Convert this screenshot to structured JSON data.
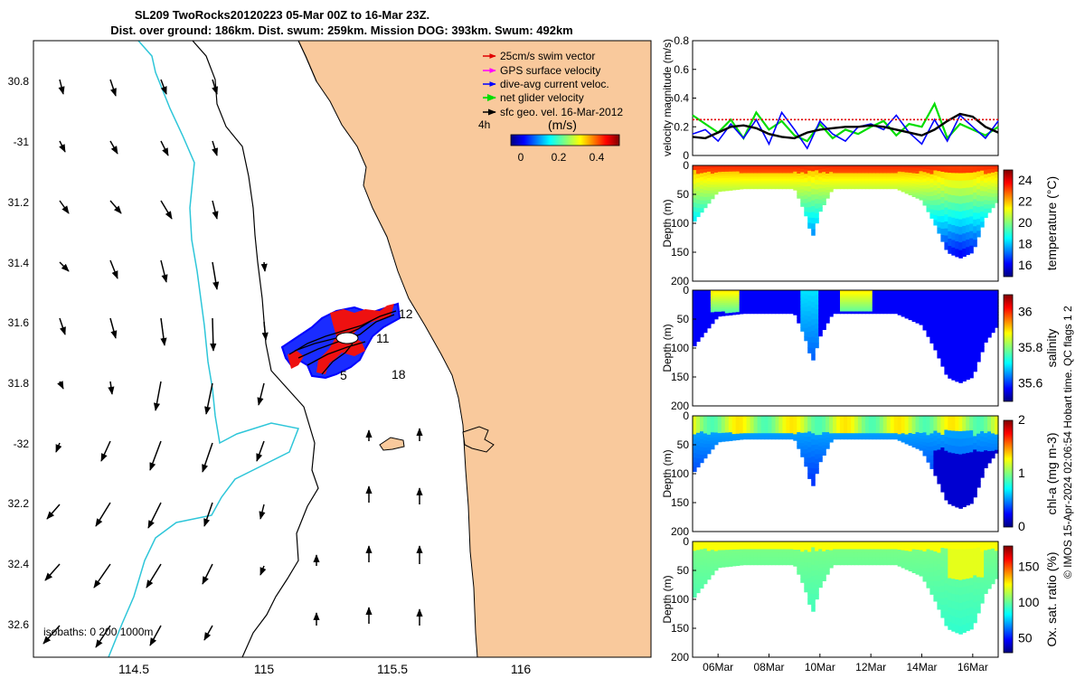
{
  "colors": {
    "land": "#f9c99c",
    "isobath200": "#2ec6d9",
    "swim": "#e00000",
    "gps": "#ff00ff",
    "diveavg": "#0000ff",
    "net": "#00dd00",
    "geo": "#000000"
  },
  "map": {
    "title_line1": "SL209 TwoRocks20120223 05-Mar 00Z to 16-Mar 23Z.",
    "title_line2": "Dist. over ground: 186km. Dist. swum: 259km. Mission DOG: 393km. Swum: 492km",
    "lat_ticks": [
      "30.8",
      "-31",
      "31.2",
      "31.4",
      "31.6",
      "31.8",
      "-32",
      "32.2",
      "32.4",
      "32.6"
    ],
    "lon_ticks": [
      "114.5",
      "115",
      "115.5",
      "116"
    ],
    "legend": [
      {
        "label": "25cm/s swim vector",
        "color_key": "swim"
      },
      {
        "label": "GPS surface velocity",
        "color_key": "gps"
      },
      {
        "label": "dive-avg current veloc.",
        "color_key": "diveavg"
      },
      {
        "label": "net glider velocity",
        "color_key": "net"
      },
      {
        "label": "sfc geo. vel. 16-Mar-2012",
        "color_key": "geo"
      }
    ],
    "timestep_label": "4h",
    "colorbar_label": "(m/s)",
    "colorbar_ticks": [
      "0",
      "0.2",
      "0.4"
    ],
    "day_labels": [
      "12",
      "11",
      "5",
      "18"
    ],
    "isobaths_label": "isobaths: 0   200  1000m"
  },
  "chart_data": [
    {
      "type": "line",
      "title": "",
      "ylabel": "velocity magnitude (m/s)",
      "ylim": [
        0,
        0.8
      ],
      "y_ticks": [
        "0",
        "0.2",
        "0.4",
        "0.6",
        "0.8"
      ],
      "x_days": [
        5,
        17
      ],
      "series": [
        {
          "name": "net glider velocity",
          "color_key": "net",
          "x": [
            5.0,
            5.5,
            6.0,
            6.5,
            7.0,
            7.5,
            8.0,
            8.5,
            9.0,
            9.5,
            10.0,
            10.5,
            11.0,
            11.5,
            12.0,
            12.5,
            13.0,
            13.5,
            14.0,
            14.5,
            15.0,
            15.5,
            16.0,
            16.5,
            17.0
          ],
          "y": [
            0.28,
            0.22,
            0.16,
            0.25,
            0.12,
            0.3,
            0.18,
            0.24,
            0.14,
            0.1,
            0.22,
            0.12,
            0.18,
            0.15,
            0.2,
            0.24,
            0.14,
            0.22,
            0.2,
            0.36,
            0.12,
            0.22,
            0.18,
            0.14,
            0.2
          ]
        },
        {
          "name": "dive-avg current veloc.",
          "color_key": "diveavg",
          "x": [
            5.0,
            5.5,
            6.0,
            6.5,
            7.0,
            7.5,
            8.0,
            8.5,
            9.0,
            9.5,
            10.0,
            10.5,
            11.0,
            11.5,
            12.0,
            12.5,
            13.0,
            13.5,
            14.0,
            14.5,
            15.0,
            15.5,
            16.0,
            16.5,
            17.0
          ],
          "y": [
            0.15,
            0.18,
            0.1,
            0.22,
            0.12,
            0.25,
            0.08,
            0.3,
            0.18,
            0.05,
            0.24,
            0.15,
            0.1,
            0.2,
            0.22,
            0.18,
            0.28,
            0.16,
            0.08,
            0.25,
            0.1,
            0.28,
            0.2,
            0.12,
            0.24
          ]
        },
        {
          "name": "sfc geo. vel.",
          "color_key": "geo",
          "x": [
            5.0,
            5.5,
            6.0,
            6.5,
            7.0,
            7.5,
            8.0,
            8.5,
            9.0,
            9.5,
            10.0,
            10.5,
            11.0,
            11.5,
            12.0,
            12.5,
            13.0,
            13.5,
            14.0,
            14.5,
            15.0,
            15.5,
            16.0,
            16.5,
            17.0
          ],
          "y": [
            0.13,
            0.12,
            0.16,
            0.2,
            0.21,
            0.19,
            0.15,
            0.13,
            0.12,
            0.16,
            0.18,
            0.19,
            0.2,
            0.2,
            0.21,
            0.2,
            0.18,
            0.16,
            0.14,
            0.18,
            0.24,
            0.29,
            0.27,
            0.2,
            0.16
          ]
        },
        {
          "name": "25cm/s swim vector",
          "color_key": "swim",
          "x": [
            5.0,
            17.0
          ],
          "y": [
            0.25,
            0.25
          ]
        }
      ]
    },
    {
      "type": "heatmap",
      "variable": "temperature",
      "ylabel": "Depth (m)",
      "cbar_label": "temperature (°C)",
      "clim": [
        15,
        25
      ],
      "cbar_ticks": [
        "24",
        "22",
        "20",
        "18",
        "16"
      ],
      "y_ticks": [
        "0",
        "50",
        "100",
        "150",
        "200"
      ],
      "x": [
        5.0,
        6.0,
        7.0,
        8.0,
        9.0,
        9.4,
        9.7,
        10.0,
        10.5,
        11.0,
        12.0,
        13.0,
        14.0,
        14.5,
        15.0,
        15.5,
        16.0,
        16.5,
        17.0
      ],
      "max_depth": [
        100,
        45,
        40,
        40,
        40,
        80,
        125,
        80,
        40,
        40,
        40,
        40,
        60,
        100,
        150,
        160,
        150,
        90,
        60
      ],
      "surface_value": 23.5,
      "bottom_value": 18.5
    },
    {
      "type": "heatmap",
      "variable": "salinity",
      "ylabel": "Depth (m)",
      "cbar_label": "salinity",
      "clim": [
        35.5,
        36.1
      ],
      "cbar_ticks": [
        "36",
        "35.8",
        "35.6"
      ],
      "y_ticks": [
        "0",
        "50",
        "100",
        "150",
        "200"
      ],
      "surface_value": 35.55,
      "bottom_value": 35.5
    },
    {
      "type": "heatmap",
      "variable": "chl-a",
      "ylabel": "Depth (m)",
      "cbar_label": "chl-a (mg m-3)",
      "clim": [
        0,
        2
      ],
      "cbar_ticks": [
        "2",
        "1",
        "0"
      ],
      "y_ticks": [
        "0",
        "50",
        "100",
        "150",
        "200"
      ],
      "surface_value": 0.6,
      "bottom_value": 0.5
    },
    {
      "type": "heatmap",
      "variable": "oxygen",
      "ylabel": "Depth (m)",
      "cbar_label": "Ox. sat. ratio (%)",
      "clim": [
        30,
        180
      ],
      "cbar_ticks": [
        "150",
        "100",
        "50"
      ],
      "y_ticks": [
        "0",
        "50",
        "100",
        "150",
        "200"
      ],
      "x_ticks": [
        "06Mar",
        "08Mar",
        "10Mar",
        "12Mar",
        "14Mar",
        "16Mar"
      ],
      "surface_value": 110,
      "bottom_value": 100
    }
  ],
  "side_text": "© IMOS 15-Apr-2024 02:06:54 Hobart time. QC flags 1  2"
}
